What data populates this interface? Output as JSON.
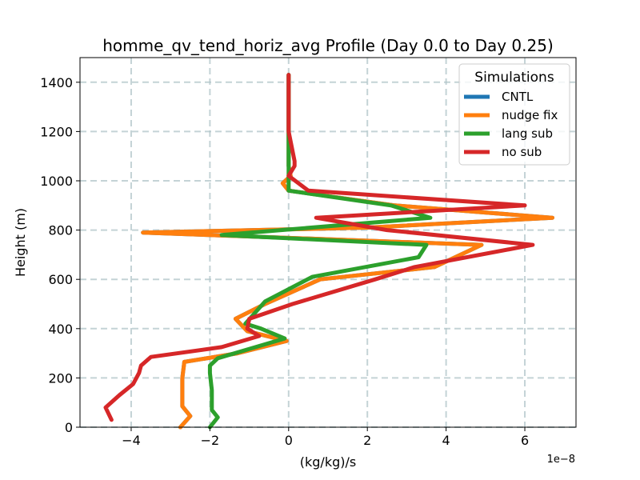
{
  "chart_data": {
    "type": "line",
    "title": "homme_qv_tend_horiz_avg Profile (Day 0.0 to Day 0.25)",
    "xlabel": "(kg/kg)/s",
    "ylabel": "Height (m)",
    "x_offset_text": "1e−8",
    "xlim": [
      -5.3,
      7.3
    ],
    "ylim": [
      0,
      1500
    ],
    "xticks": [
      -4,
      -2,
      0,
      2,
      4,
      6
    ],
    "xtick_labels": [
      "−4",
      "−2",
      "0",
      "2",
      "4",
      "6"
    ],
    "yticks": [
      0,
      200,
      400,
      600,
      800,
      1000,
      1200,
      1400
    ],
    "ytick_labels": [
      "0",
      "200",
      "400",
      "600",
      "800",
      "1000",
      "1200",
      "1400"
    ],
    "grid": true,
    "legend": {
      "title": "Simulations",
      "placement": "top-right",
      "entries": [
        "CNTL",
        "nudge fix",
        "lang sub",
        "no sub"
      ]
    },
    "series": [
      {
        "name": "CNTL",
        "color": "#1f77b4",
        "points": [
          [
            -2.75,
            0
          ],
          [
            -2.5,
            45
          ],
          [
            -2.7,
            85
          ],
          [
            -2.7,
            150
          ],
          [
            -2.7,
            200
          ],
          [
            -2.65,
            265
          ],
          [
            -1.3,
            300
          ],
          [
            -0.05,
            350
          ],
          [
            -1.05,
            390
          ],
          [
            -1.35,
            440
          ],
          [
            -0.6,
            500
          ],
          [
            0.8,
            600
          ],
          [
            3.7,
            650
          ],
          [
            4.9,
            740
          ],
          [
            -3.7,
            790
          ],
          [
            2.0,
            810
          ],
          [
            6.7,
            850
          ],
          [
            2.7,
            900
          ],
          [
            0,
            960
          ],
          [
            -0.15,
            990
          ],
          [
            0.05,
            1020
          ],
          [
            0,
            1060
          ],
          [
            0,
            1200
          ],
          [
            0,
            1430
          ]
        ]
      },
      {
        "name": "nudge fix",
        "color": "#ff7f0e",
        "points": [
          [
            -2.75,
            0
          ],
          [
            -2.5,
            45
          ],
          [
            -2.7,
            85
          ],
          [
            -2.7,
            150
          ],
          [
            -2.7,
            200
          ],
          [
            -2.65,
            265
          ],
          [
            -1.3,
            300
          ],
          [
            -0.05,
            350
          ],
          [
            -1.05,
            390
          ],
          [
            -1.35,
            440
          ],
          [
            -0.6,
            500
          ],
          [
            0.8,
            600
          ],
          [
            3.7,
            650
          ],
          [
            4.9,
            740
          ],
          [
            -3.7,
            790
          ],
          [
            2.0,
            810
          ],
          [
            6.7,
            850
          ],
          [
            2.7,
            900
          ],
          [
            0,
            960
          ],
          [
            -0.15,
            990
          ],
          [
            0.05,
            1020
          ],
          [
            0,
            1060
          ],
          [
            0,
            1200
          ],
          [
            0,
            1430
          ]
        ]
      },
      {
        "name": "lang sub",
        "color": "#2ca02c",
        "points": [
          [
            -2.0,
            0
          ],
          [
            -1.8,
            40
          ],
          [
            -1.95,
            70
          ],
          [
            -1.95,
            150
          ],
          [
            -2.0,
            220
          ],
          [
            -2.0,
            250
          ],
          [
            -1.8,
            280
          ],
          [
            -0.1,
            360
          ],
          [
            -0.7,
            400
          ],
          [
            -1.1,
            420
          ],
          [
            -0.6,
            510
          ],
          [
            0.6,
            610
          ],
          [
            3.3,
            690
          ],
          [
            3.5,
            740
          ],
          [
            -1.7,
            780
          ],
          [
            3.6,
            850
          ],
          [
            2.6,
            900
          ],
          [
            0,
            960
          ],
          [
            0,
            1000
          ],
          [
            0,
            1100
          ],
          [
            0,
            1200
          ],
          [
            0,
            1430
          ]
        ]
      },
      {
        "name": "no sub",
        "color": "#d62728",
        "points": [
          [
            -4.5,
            30
          ],
          [
            -4.65,
            80
          ],
          [
            -4.3,
            130
          ],
          [
            -3.95,
            175
          ],
          [
            -3.8,
            220
          ],
          [
            -3.75,
            250
          ],
          [
            -3.5,
            285
          ],
          [
            -1.7,
            325
          ],
          [
            -0.75,
            370
          ],
          [
            -1.05,
            400
          ],
          [
            -1.0,
            440
          ],
          [
            0.1,
            500
          ],
          [
            2.2,
            600
          ],
          [
            3.2,
            650
          ],
          [
            6.2,
            740
          ],
          [
            2.5,
            800
          ],
          [
            0.7,
            850
          ],
          [
            6.0,
            900
          ],
          [
            0.5,
            960
          ],
          [
            0,
            1020
          ],
          [
            0.15,
            1060
          ],
          [
            0.15,
            1080
          ],
          [
            0,
            1200
          ],
          [
            0,
            1430
          ]
        ]
      }
    ]
  }
}
